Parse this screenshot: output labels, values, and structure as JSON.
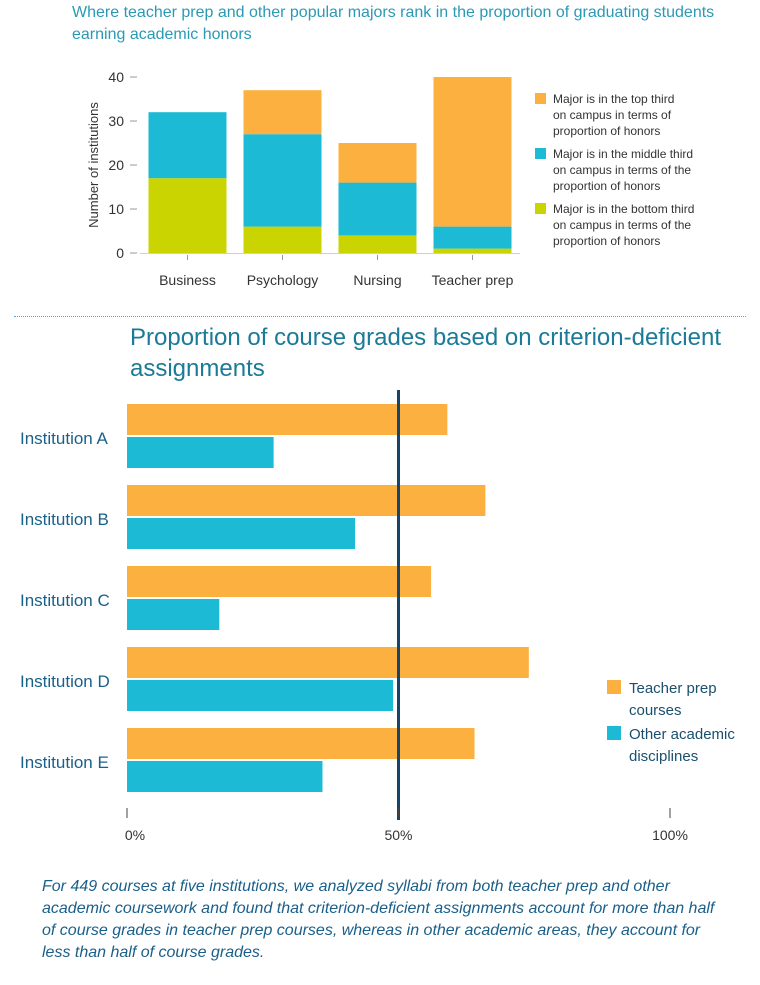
{
  "colors": {
    "top_third": "#fbb03f",
    "middle_third": "#1cbad4",
    "bottom_third": "#c9d400",
    "teacher_prep": "#fbb03f",
    "other_disciplines": "#1cbad4",
    "reference_line": "#17456a"
  },
  "chart_data": [
    {
      "type": "bar",
      "stacked": true,
      "title": "Where teacher prep and other popular majors rank in the proportion of graduating students earning academic honors",
      "xlabel": "",
      "ylabel": "Number of institutions",
      "categories": [
        "Business",
        "Psychology",
        "Nursing",
        "Teacher prep"
      ],
      "ylim": [
        0,
        40
      ],
      "yticks": [
        "0",
        "10",
        "20",
        "30",
        "40"
      ],
      "series": [
        {
          "name": "Major is in the bottom third on campus in terms of the proportion of honors",
          "color_key": "bottom_third",
          "values": [
            17,
            6,
            4,
            1
          ]
        },
        {
          "name": "Major is in the middle third on campus in terms of the proportion of honors",
          "color_key": "middle_third",
          "values": [
            15,
            21,
            12,
            5
          ]
        },
        {
          "name": "Major is in the top third on campus in terms of proportion of honors",
          "color_key": "top_third",
          "values": [
            0,
            10,
            9,
            34
          ]
        }
      ],
      "legend": {
        "placement": "right",
        "entries": [
          {
            "color_key": "top_third",
            "lines": [
              "Major is in the top third",
              "on campus in terms of",
              "proportion of honors"
            ]
          },
          {
            "color_key": "middle_third",
            "lines": [
              "Major is in the middle third",
              "on campus in terms of the",
              "proportion of honors"
            ]
          },
          {
            "color_key": "bottom_third",
            "lines": [
              "Major is in the bottom third",
              "on campus in terms of the",
              "proportion of honors"
            ]
          }
        ]
      },
      "grid": false
    },
    {
      "type": "bar",
      "orientation": "horizontal",
      "title": "Proportion of course grades based on criterion-deficient assignments",
      "xlabel": "",
      "ylabel": "",
      "categories": [
        "Institution A",
        "Institution B",
        "Institution C",
        "Institution D",
        "Institution E"
      ],
      "xlim": [
        0,
        100
      ],
      "xticks": [
        "0%",
        "50%",
        "100%"
      ],
      "reference_line": 50,
      "series": [
        {
          "name": "Teacher prep courses",
          "color_key": "teacher_prep",
          "values": [
            59,
            66,
            56,
            74,
            64
          ]
        },
        {
          "name": "Other academic disciplines",
          "color_key": "other_disciplines",
          "values": [
            27,
            42,
            17,
            49,
            36
          ]
        }
      ],
      "legend": {
        "placement": "right",
        "entries": [
          {
            "color_key": "teacher_prep",
            "lines": [
              "Teacher prep",
              "courses"
            ]
          },
          {
            "color_key": "other_disciplines",
            "lines": [
              "Other academic",
              "disciplines"
            ]
          }
        ]
      },
      "grid": false
    }
  ],
  "caption": "For 449 courses at five institutions, we analyzed syllabi from both teacher prep and other academic coursework and found that criterion-deficient assignments account for more than half of course grades in teacher prep courses, whereas in other academic areas, they account for less than half of course grades."
}
